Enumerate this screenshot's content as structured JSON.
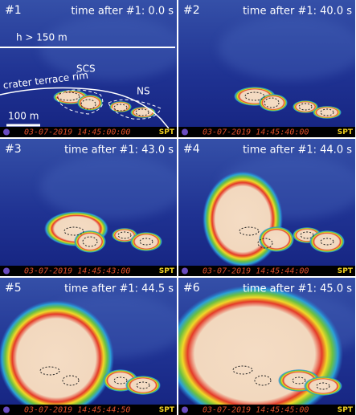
{
  "panels": [
    {
      "label": "#1",
      "time": "time after #1:  0.0 s",
      "timestamp": "03-07-2019  14:45:00:00",
      "camera": "SPT"
    },
    {
      "label": "#2",
      "time": "time after #1:  40.0 s",
      "timestamp": "03-07-2019  14:45:40:00",
      "camera": "SPT"
    },
    {
      "label": "#3",
      "time": "time after #1:  43.0 s",
      "timestamp": "03-07-2019  14:45:43:00",
      "camera": "SPT"
    },
    {
      "label": "#4",
      "time": "time after #1:  44.0 s",
      "timestamp": "03-07-2019  14:45:44:00",
      "camera": "SPT"
    },
    {
      "label": "#5",
      "time": "time after #1:  44.5 s",
      "timestamp": "03-07-2019  14:45:44:50",
      "camera": "SPT"
    },
    {
      "label": "#6",
      "time": "time after #1:  45.0 s",
      "timestamp": "03-07-2019  14:45:45:00",
      "camera": "SPT"
    }
  ],
  "annotations": {
    "height": "h > 150 m",
    "scs": "SCS",
    "ns": "NS",
    "rim": "crater terrace rim",
    "scale": "100 m"
  }
}
